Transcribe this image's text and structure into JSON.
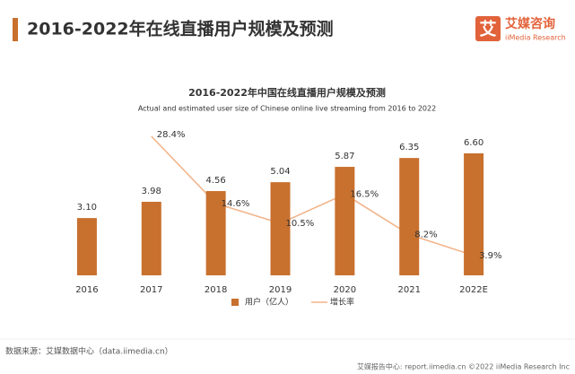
{
  "header": {
    "title": "2016-2022年在线直播用户规模及预测",
    "logo_icon": "艾",
    "logo_cn": "艾媒咨询",
    "logo_en": "iiMedia Research"
  },
  "chart_data": {
    "type": "bar",
    "title": "2016-2022年中国在线直播用户规模及预测",
    "subtitle": "Actual and estimated user size of Chinese online live streaming from 2016 to 2022",
    "categories": [
      "2016",
      "2017",
      "2018",
      "2019",
      "2020",
      "2021",
      "2022E"
    ],
    "series": [
      {
        "name": "用户（亿人）",
        "type": "bar",
        "color": "#c8702e",
        "values": [
          3.1,
          3.98,
          4.56,
          5.04,
          5.87,
          6.35,
          6.6
        ],
        "value_labels": [
          "3.10",
          "3.98",
          "4.56",
          "5.04",
          "5.87",
          "6.35",
          "6.60"
        ]
      },
      {
        "name": "增长率",
        "type": "line",
        "axis": "y2",
        "color": "#f2b48a",
        "values": [
          null,
          28.4,
          14.6,
          10.5,
          16.5,
          8.2,
          3.9
        ],
        "value_labels": [
          null,
          "28.4%",
          "14.6%",
          "10.5%",
          "16.5%",
          "8.2%",
          "3.9%"
        ]
      }
    ]
  },
  "footer": {
    "source": "数据来源：艾媒数据中心（data.iimedia.cn）",
    "right": "艾媒报告中心: report.iimedia.cn ©2022 iiMedia Research Inc"
  }
}
